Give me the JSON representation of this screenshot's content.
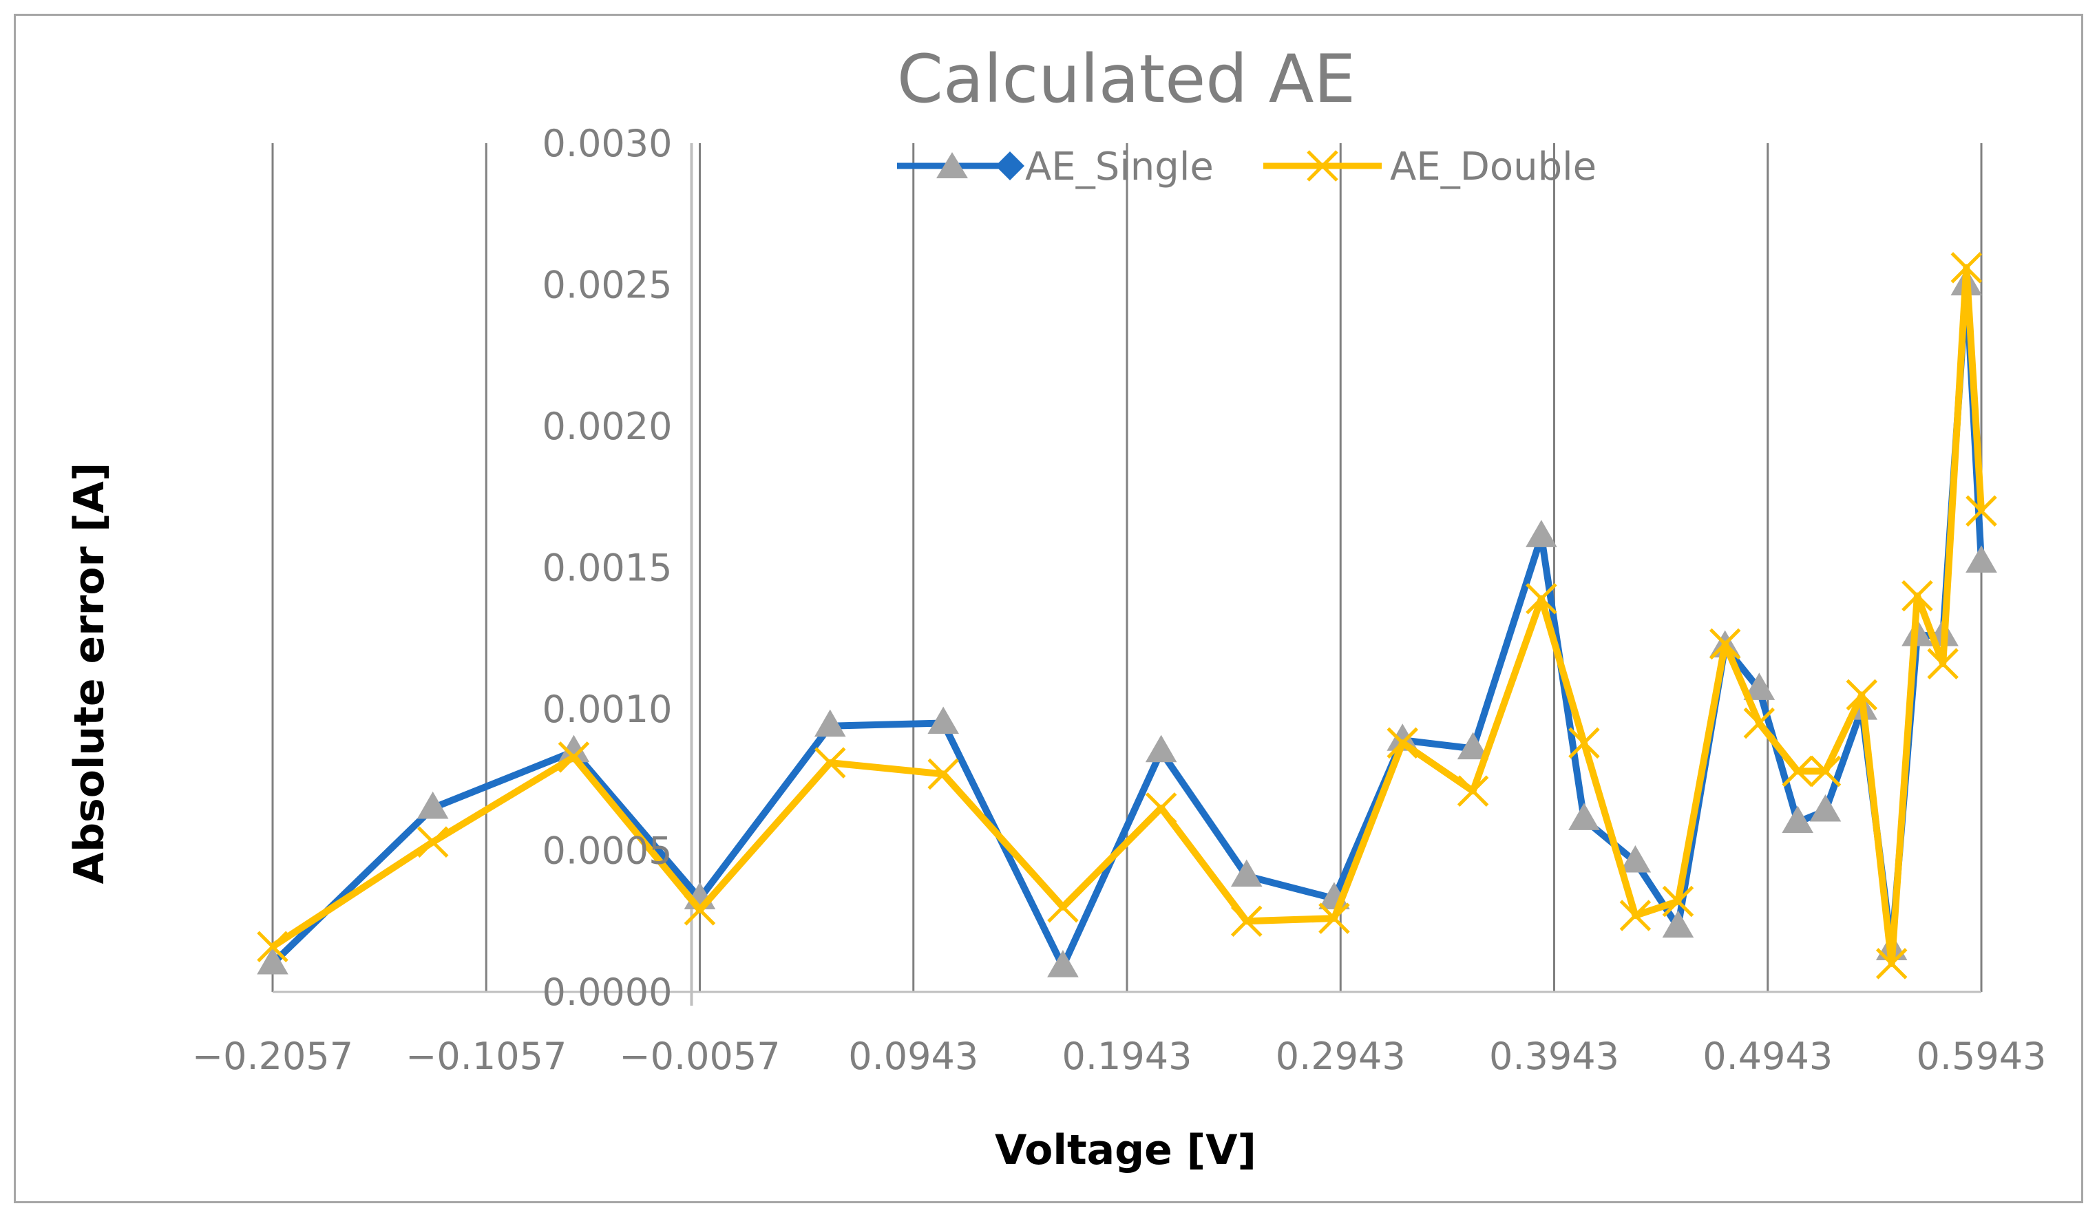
{
  "chart_data": {
    "type": "line",
    "title": "Calculated AE",
    "xlabel": "Voltage [V]",
    "ylabel": "Absolute error [A]",
    "xlim": [
      -0.2057,
      0.5943
    ],
    "ylim": [
      0,
      0.003
    ],
    "x_ticks": [
      "−0.2057",
      "−0.1057",
      "−0.0057",
      "0.0943",
      "0.1943",
      "0.2943",
      "0.3943",
      "0.4943",
      "0.5943"
    ],
    "x_tick_values": [
      -0.2057,
      -0.1057,
      -0.0057,
      0.0943,
      0.1943,
      0.2943,
      0.3943,
      0.4943,
      0.5943
    ],
    "y_ticks": [
      "0.0000",
      "0.0005",
      "0.0010",
      "0.0015",
      "0.0020",
      "0.0025",
      "0.0030"
    ],
    "y_tick_values": [
      0,
      0.0005,
      0.001,
      0.0015,
      0.002,
      0.0025,
      0.003
    ],
    "y_axis_position": -0.0057,
    "grid": "vertical",
    "legend_position": "top-center",
    "series": [
      {
        "name": "AE_Single",
        "color": "#1f6fc5",
        "marker_color": "#a5a5a5",
        "marker": "triangle",
        "legend_marker": "diamond",
        "x": [
          -0.2057,
          -0.1307,
          -0.0647,
          -0.0057,
          0.0553,
          0.1083,
          0.1643,
          0.2103,
          0.2503,
          0.2913,
          0.3233,
          0.3563,
          0.3883,
          0.4083,
          0.4323,
          0.4523,
          0.4743,
          0.4903,
          0.5083,
          0.5213,
          0.5383,
          0.5523,
          0.5643,
          0.5763,
          0.5873,
          0.5943
        ],
        "values": [
          0.0001,
          0.00065,
          0.00085,
          0.00033,
          0.00094,
          0.00095,
          9e-05,
          0.00085,
          0.00041,
          0.00033,
          0.00089,
          0.00086,
          0.00161,
          0.00061,
          0.00046,
          0.00023,
          0.00122,
          0.00107,
          0.0006,
          0.00064,
          0.001,
          0.00015,
          0.00126,
          0.00126,
          0.0025,
          0.00152
        ]
      },
      {
        "name": "AE_Double",
        "color": "#ffc000",
        "marker_color": "#ffc000",
        "marker": "x",
        "legend_marker": "x",
        "x": [
          -0.2057,
          -0.1307,
          -0.0647,
          -0.0057,
          0.0553,
          0.1083,
          0.1643,
          0.2103,
          0.2503,
          0.2913,
          0.3233,
          0.3563,
          0.3883,
          0.4083,
          0.4323,
          0.4523,
          0.4743,
          0.4903,
          0.5083,
          0.5213,
          0.5383,
          0.5523,
          0.5643,
          0.5763,
          0.5873,
          0.5943
        ],
        "values": [
          0.00016,
          0.00053,
          0.00083,
          0.00029,
          0.00081,
          0.00077,
          0.0003,
          0.00065,
          0.00025,
          0.00026,
          0.00088,
          0.00071,
          0.00139,
          0.00088,
          0.00027,
          0.00032,
          0.00123,
          0.00095,
          0.00078,
          0.00078,
          0.00105,
          0.0001,
          0.0014,
          0.00116,
          0.00256,
          0.0017
        ]
      }
    ]
  }
}
